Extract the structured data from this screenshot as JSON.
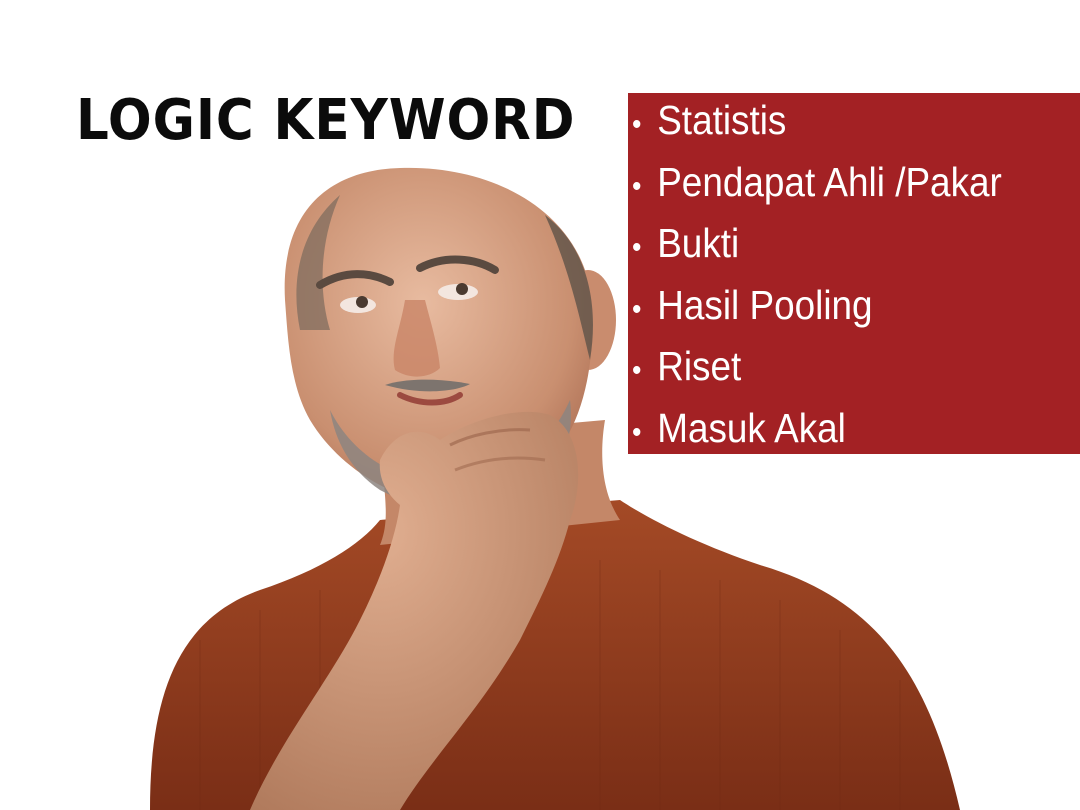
{
  "slide": {
    "title": "LOGIC KEYWORD",
    "keywords": [
      "Statistis",
      "Pendapat Ahli /Pakar",
      "Bukti",
      "Hasil Pooling",
      "Riset",
      "Masuk Akal"
    ],
    "bullet": "•",
    "colors": {
      "box": "#a32124",
      "title": "#0b0b0b",
      "shirt": "#8e3a1f",
      "skin": "#d9a789"
    },
    "photo": "thinking-man-photo"
  }
}
